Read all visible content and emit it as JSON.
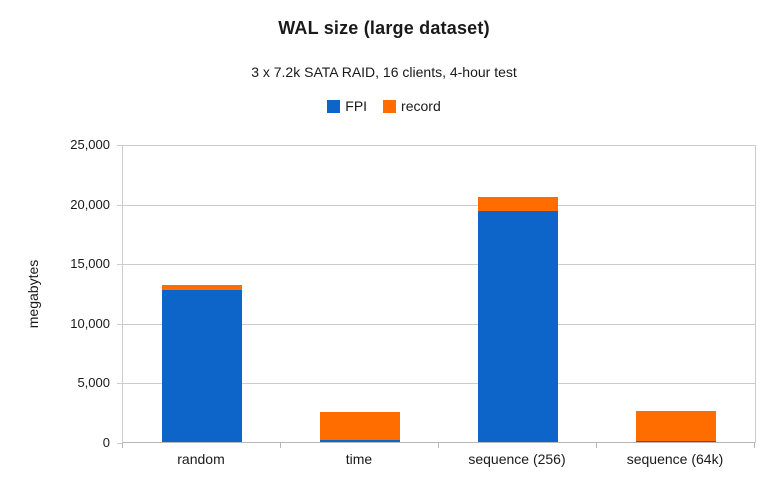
{
  "title": "WAL size (large dataset)",
  "subtitle": "3 x 7.2k SATA RAID, 16 clients, 4-hour test",
  "y_axis": {
    "label": "megabytes",
    "ticks": [
      "25,000",
      "20,000",
      "15,000",
      "10,000",
      "5,000",
      "0"
    ]
  },
  "legend": [
    {
      "label": "FPI",
      "color": "#0e65c9"
    },
    {
      "label": "record",
      "color": "#ff6d00"
    }
  ],
  "colors": {
    "fpi": "#0e65c9",
    "record": "#ff6d00",
    "gridline": "#cccccc",
    "axis": "#b7b7b7",
    "text": "#1a1a1a"
  },
  "chart_data": {
    "type": "bar",
    "stacked": true,
    "title": "WAL size (large dataset)",
    "subtitle": "3 x 7.2k SATA RAID, 16 clients, 4-hour test",
    "xlabel": "",
    "ylabel": "megabytes",
    "ylim": [
      0,
      25000
    ],
    "ytick_interval": 5000,
    "grid": true,
    "legend_position": "top",
    "categories": [
      "random",
      "time",
      "sequence (256)",
      "sequence (64k)"
    ],
    "series": [
      {
        "name": "FPI",
        "color": "#0e65c9",
        "values": [
          12800,
          230,
          19500,
          170
        ]
      },
      {
        "name": "record",
        "color": "#ff6d00",
        "values": [
          420,
          2350,
          1150,
          2520
        ]
      }
    ],
    "totals": [
      13220,
      2580,
      20650,
      2690
    ]
  }
}
